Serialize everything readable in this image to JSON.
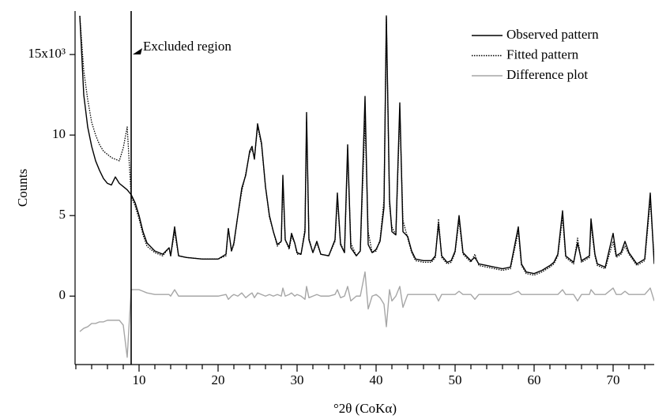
{
  "chart_data": {
    "type": "line",
    "x_label": "°2θ (CoKα)",
    "y_label": "Counts",
    "annotation": {
      "text": "Excluded region",
      "x": 9
    },
    "xlim": [
      1.9,
      75.2
    ],
    "ylim": [
      -4.25,
      17.7
    ],
    "xticks": [
      10,
      20,
      30,
      40,
      50,
      60,
      70
    ],
    "xminor_ticks": [
      2,
      4,
      6,
      8,
      12,
      14,
      16,
      18,
      22,
      24,
      26,
      28,
      32,
      34,
      36,
      38,
      42,
      44,
      46,
      48,
      52,
      54,
      56,
      58,
      62,
      64,
      66,
      68,
      72,
      74
    ],
    "yticks": [
      0,
      5,
      10,
      {
        "value": 15,
        "label": "15x10³"
      }
    ],
    "legend": "upper right",
    "x": [
      2.5,
      3,
      3.5,
      4,
      4.5,
      5,
      5.5,
      6,
      6.5,
      7,
      7.5,
      8,
      8.5,
      9,
      9.5,
      10,
      10.5,
      11,
      12,
      13,
      13.8,
      14,
      14.5,
      15,
      16,
      18,
      20,
      21,
      21.3,
      21.7,
      22,
      22.5,
      23,
      23.5,
      24,
      24.3,
      24.6,
      25,
      25.5,
      26,
      26.5,
      27,
      27.5,
      28,
      28.2,
      28.5,
      29,
      29.3,
      29.7,
      30,
      30.5,
      31,
      31.2,
      31.5,
      32,
      32.5,
      33,
      34,
      34.8,
      35.1,
      35.5,
      36,
      36.4,
      36.8,
      37.5,
      38,
      38.6,
      39,
      39.5,
      40,
      40.5,
      41,
      41.3,
      41.7,
      42,
      42.5,
      43,
      43.4,
      44,
      44.5,
      45,
      46,
      47,
      47.5,
      47.9,
      48.3,
      49,
      49.5,
      50,
      50.5,
      51,
      52,
      52.5,
      53,
      54,
      55,
      56,
      57,
      58,
      58.4,
      59,
      60,
      61,
      62,
      62.5,
      63,
      63.6,
      64,
      65,
      65.5,
      66,
      67,
      67.2,
      67.7,
      68,
      69,
      70,
      70.4,
      71,
      71.5,
      72,
      73,
      74,
      74.7,
      75.2
    ],
    "series": [
      {
        "name": "Observed pattern",
        "color": "#000000",
        "style": "solid",
        "values": [
          17.4,
          12.5,
          10.5,
          9.3,
          8.4,
          7.8,
          7.3,
          7.0,
          6.9,
          7.4,
          7.0,
          6.8,
          6.6,
          6.3,
          5.8,
          5.0,
          4.0,
          3.3,
          2.8,
          2.6,
          3.0,
          2.5,
          4.3,
          2.5,
          2.4,
          2.3,
          2.3,
          2.6,
          4.2,
          2.8,
          3.3,
          5.0,
          6.7,
          7.5,
          9.0,
          9.3,
          8.5,
          10.7,
          9.5,
          6.8,
          5.0,
          4.0,
          3.2,
          3.4,
          7.5,
          3.5,
          3.0,
          3.9,
          3.3,
          2.7,
          2.6,
          4.0,
          11.4,
          3.5,
          2.7,
          3.4,
          2.6,
          2.5,
          3.5,
          6.4,
          3.2,
          2.7,
          9.4,
          3.0,
          2.5,
          2.8,
          12.4,
          3.2,
          2.7,
          2.9,
          3.4,
          5.5,
          17.4,
          6.0,
          4.0,
          3.8,
          12.0,
          4.0,
          3.7,
          2.8,
          2.3,
          2.2,
          2.2,
          2.5,
          4.5,
          2.5,
          2.1,
          2.2,
          2.8,
          5.0,
          2.7,
          2.2,
          2.4,
          2.0,
          1.9,
          1.8,
          1.7,
          1.8,
          4.3,
          2.0,
          1.5,
          1.4,
          1.6,
          1.9,
          2.1,
          2.6,
          5.3,
          2.5,
          2.1,
          3.3,
          2.2,
          2.5,
          4.8,
          2.6,
          2.0,
          1.8,
          3.9,
          2.5,
          2.7,
          3.4,
          2.7,
          2.0,
          2.3,
          6.4,
          2.0
        ]
      },
      {
        "name": "Fitted pattern",
        "color": "#000000",
        "style": "dotted",
        "values": [
          17.4,
          14,
          12.2,
          10.8,
          10,
          9.4,
          9.0,
          8.8,
          8.6,
          8.5,
          8.4,
          9.2,
          10.5,
          6.2,
          5.6,
          4.8,
          3.8,
          3.1,
          2.7,
          2.5,
          3.0,
          2.5,
          4.0,
          2.5,
          2.4,
          2.3,
          2.3,
          2.5,
          4.2,
          2.8,
          3.2,
          5.0,
          6.5,
          7.6,
          8.9,
          9.1,
          8.6,
          10.5,
          9.4,
          6.8,
          4.9,
          4.0,
          3.1,
          3.4,
          7.0,
          3.5,
          2.9,
          3.7,
          3.3,
          2.6,
          2.6,
          4.2,
          10.8,
          3.6,
          2.7,
          3.3,
          2.6,
          2.5,
          3.4,
          6.0,
          3.3,
          2.7,
          8.8,
          3.3,
          2.5,
          2.8,
          10.9,
          4.0,
          2.7,
          2.8,
          3.5,
          6.0,
          17.3,
          5.6,
          4.3,
          3.8,
          11.4,
          4.7,
          3.6,
          2.7,
          2.2,
          2.1,
          2.1,
          2.4,
          4.8,
          2.4,
          2.0,
          2.1,
          2.7,
          4.7,
          2.6,
          2.1,
          2.6,
          1.9,
          1.8,
          1.7,
          1.6,
          1.7,
          4.0,
          1.9,
          1.4,
          1.3,
          1.5,
          1.8,
          2.0,
          2.5,
          4.9,
          2.4,
          2.0,
          3.6,
          2.1,
          2.4,
          4.4,
          2.5,
          1.9,
          1.7,
          3.4,
          2.4,
          2.6,
          3.1,
          2.6,
          1.9,
          2.2,
          5.9,
          2.3
        ]
      },
      {
        "name": "Difference plot",
        "color": "#a6a6a6",
        "style": "solid",
        "values": [
          -2.2,
          -2.0,
          -1.9,
          -1.7,
          -1.7,
          -1.6,
          -1.6,
          -1.5,
          -1.5,
          -1.5,
          -1.5,
          -1.8,
          -3.8,
          0.4,
          0.4,
          0.4,
          0.3,
          0.2,
          0.1,
          0.1,
          0.1,
          0.0,
          0.4,
          0.0,
          0.0,
          0.0,
          0.0,
          0.1,
          -0.2,
          0.0,
          0.1,
          0.0,
          0.2,
          -0.1,
          0.1,
          0.2,
          -0.1,
          0.2,
          0.1,
          0.0,
          0.1,
          0.0,
          0.1,
          0.0,
          0.5,
          0.0,
          0.1,
          0.2,
          0.0,
          0.1,
          0.0,
          -0.2,
          0.6,
          -0.1,
          0.0,
          0.1,
          0.0,
          0.0,
          0.1,
          0.4,
          -0.1,
          0.0,
          0.6,
          -0.3,
          0.0,
          0.0,
          1.5,
          -0.8,
          0.0,
          0.1,
          -0.1,
          -0.5,
          -1.9,
          0.4,
          -0.3,
          0.0,
          0.6,
          -0.7,
          0.1,
          0.1,
          0.1,
          0.1,
          0.1,
          0.1,
          -0.3,
          0.1,
          0.1,
          0.1,
          0.1,
          0.3,
          0.1,
          0.1,
          -0.2,
          0.1,
          0.1,
          0.1,
          0.1,
          0.1,
          0.3,
          0.1,
          0.1,
          0.1,
          0.1,
          0.1,
          0.1,
          0.1,
          0.4,
          0.1,
          0.1,
          -0.3,
          0.1,
          0.1,
          0.4,
          0.1,
          0.1,
          0.1,
          0.5,
          0.1,
          0.1,
          0.3,
          0.1,
          0.1,
          0.1,
          0.5,
          -0.3
        ]
      }
    ]
  }
}
